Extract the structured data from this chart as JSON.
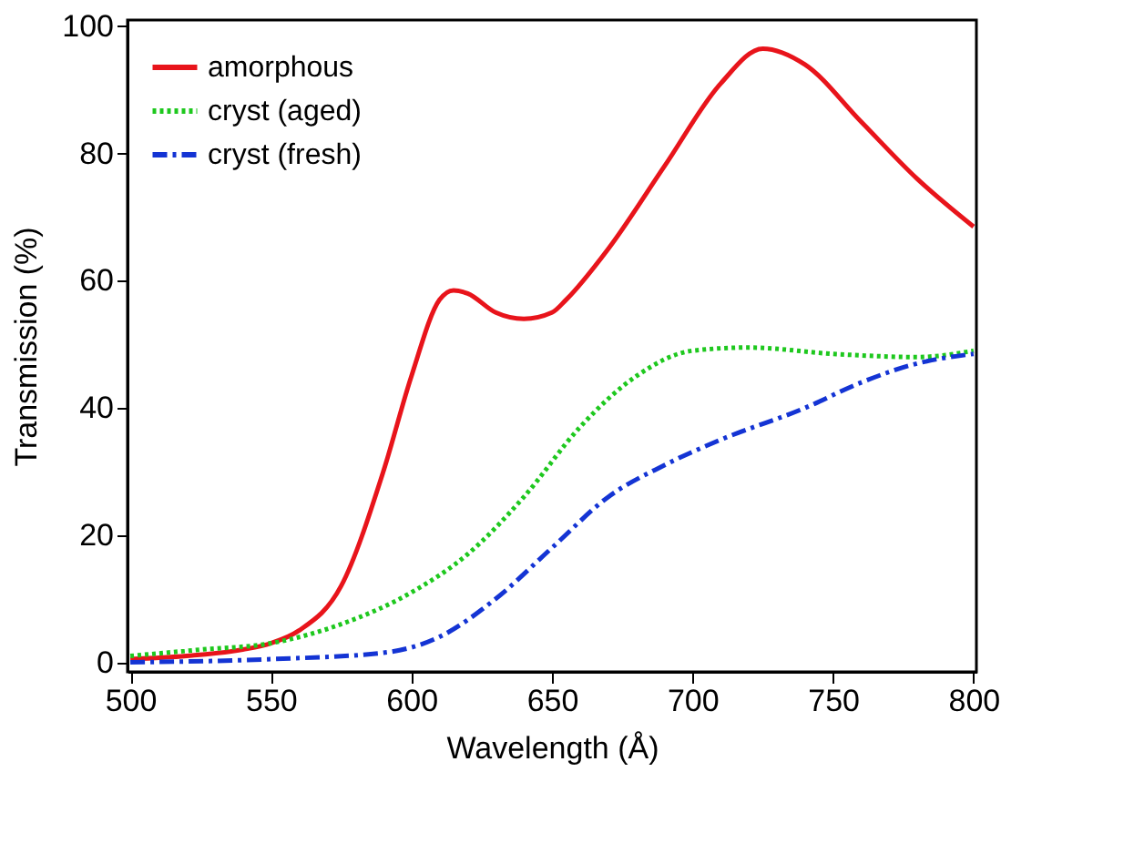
{
  "chart_data": {
    "type": "line",
    "xlabel": "Wavelength (Å)",
    "ylabel": "Transmission (%)",
    "xlim": [
      499,
      801
    ],
    "ylim": [
      -1.5,
      101
    ],
    "xticks": [
      500,
      550,
      600,
      650,
      700,
      750,
      800
    ],
    "yticks": [
      0,
      20,
      40,
      60,
      80,
      100
    ],
    "grid": false,
    "legend": "top left",
    "series": [
      {
        "name": "amorphous",
        "color": "#e8141b",
        "line_style": "solid",
        "x": [
          500,
          520,
          540,
          550,
          560,
          575,
          590,
          600,
          610,
          615,
          620,
          630,
          640,
          650,
          655,
          670,
          690,
          710,
          725,
          740,
          760,
          780,
          800
        ],
        "values": [
          0.5,
          1,
          2,
          3,
          5,
          12,
          30,
          45,
          57,
          58.5,
          58,
          55,
          54,
          55,
          57,
          65,
          78,
          91,
          96.5,
          94,
          85,
          76,
          68.5
        ]
      },
      {
        "name": "cryst (aged)",
        "color": "#1ec81e",
        "line_style": "dotted",
        "x": [
          500,
          525,
          550,
          575,
          600,
          620,
          640,
          660,
          680,
          700,
          720,
          750,
          780,
          800
        ],
        "values": [
          1,
          2,
          3,
          6,
          11,
          17,
          26,
          37,
          45,
          49,
          49.5,
          48.5,
          48,
          49
        ]
      },
      {
        "name": "cryst (fresh)",
        "color": "#1434d4",
        "line_style": "dashdot",
        "x": [
          500,
          550,
          590,
          610,
          630,
          650,
          670,
          690,
          710,
          740,
          760,
          780,
          800
        ],
        "values": [
          0,
          0.5,
          1.5,
          4,
          10,
          18,
          26,
          31,
          35,
          40,
          44,
          47,
          48.5
        ]
      }
    ]
  }
}
